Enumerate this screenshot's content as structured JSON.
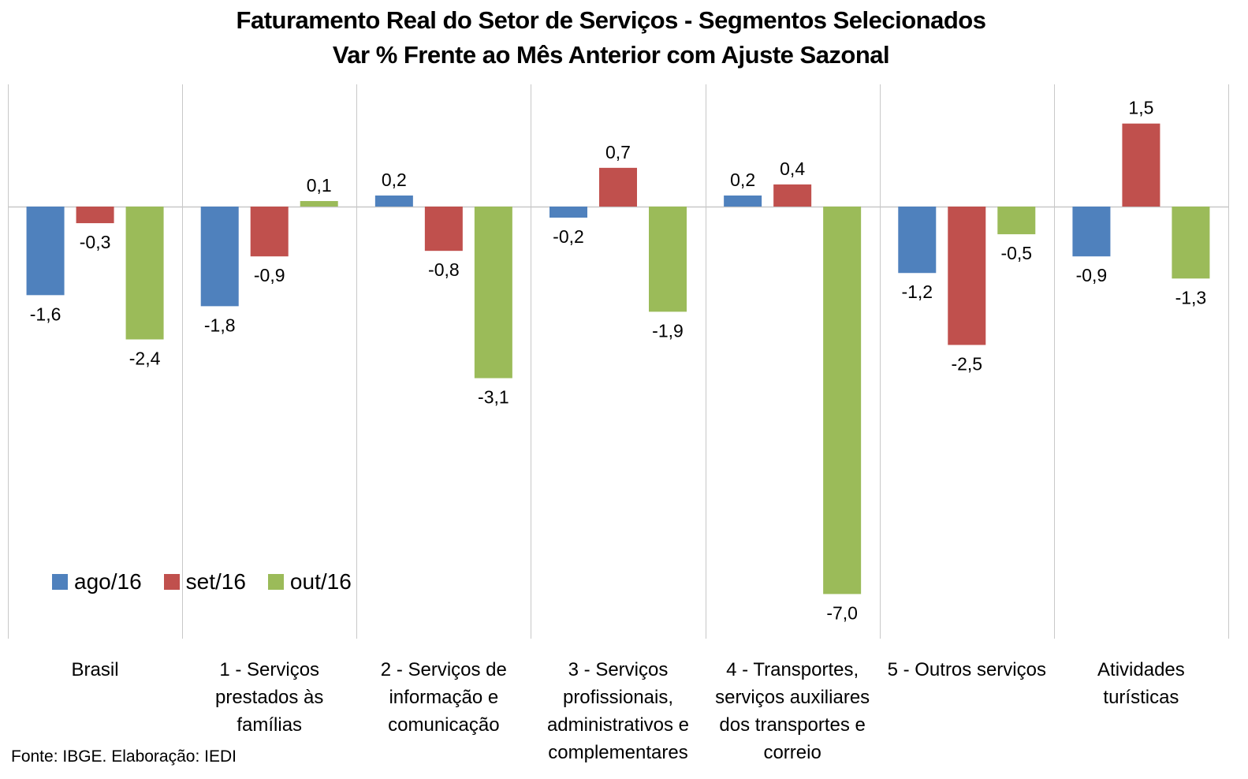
{
  "chart_data": {
    "type": "bar",
    "title": "Faturamento Real do Setor de Serviços - Segmentos Selecionados",
    "subtitle": "Var % Frente ao Mês Anterior com Ajuste Sazonal",
    "xlabel": "",
    "ylabel": "",
    "ylim": [
      -7.0,
      2.2
    ],
    "grid": "vertical category separators",
    "legend_position": "bottom-left (inside plot)",
    "categories": [
      [
        "Brasil"
      ],
      [
        "1 - Serviços",
        "prestados às",
        "famílias"
      ],
      [
        "2 - Serviços de",
        "informação e",
        "comunicação"
      ],
      [
        "3 - Serviços",
        "profissionais,",
        "administrativos e",
        "complementares"
      ],
      [
        "4 - Transportes,",
        "serviços auxiliares",
        "dos transportes e",
        "correio"
      ],
      [
        "5 - Outros serviços"
      ],
      [
        "Atividades",
        "turísticas"
      ]
    ],
    "series": [
      {
        "name": "ago/16",
        "color": "#4F81BD",
        "values": [
          -1.6,
          -1.8,
          0.2,
          -0.2,
          0.2,
          -1.2,
          -0.9
        ],
        "labels": [
          "-1,6",
          "-1,8",
          "0,2",
          "-0,2",
          "0,2",
          "-1,2",
          "-0,9"
        ]
      },
      {
        "name": "set/16",
        "color": "#C0504D",
        "values": [
          -0.3,
          -0.9,
          -0.8,
          0.7,
          0.4,
          -2.5,
          1.5
        ],
        "labels": [
          "-0,3",
          "-0,9",
          "-0,8",
          "0,7",
          "0,4",
          "-2,5",
          "1,5"
        ]
      },
      {
        "name": "out/16",
        "color": "#9BBB59",
        "values": [
          -2.4,
          0.1,
          -3.1,
          -1.9,
          -7.0,
          -0.5,
          -1.3
        ],
        "labels": [
          "-2,4",
          "0,1",
          "-3,1",
          "-1,9",
          "-7,0",
          "-0,5",
          "-1,3"
        ]
      }
    ],
    "source": "Fonte: IBGE. Elaboração: IEDI"
  }
}
